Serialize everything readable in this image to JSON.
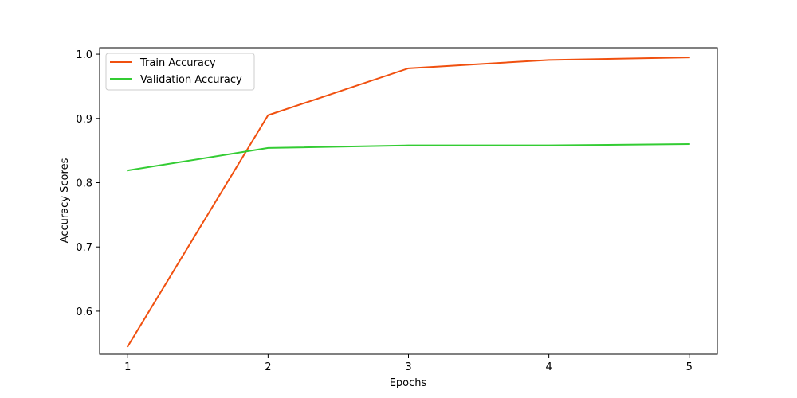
{
  "chart_data": {
    "type": "line",
    "title": "",
    "xlabel": "Epochs",
    "ylabel": "Accuracy Scores",
    "x": [
      1,
      2,
      3,
      4,
      5
    ],
    "xticks": [
      "1",
      "2",
      "3",
      "4",
      "5"
    ],
    "xlim": [
      0.8,
      5.2
    ],
    "yticks": [
      "0.6",
      "0.7",
      "0.8",
      "0.9",
      "1.0"
    ],
    "ylim": [
      0.533,
      1.01
    ],
    "grid": false,
    "legend_position": "top-left",
    "series": [
      {
        "name": "Train Accuracy",
        "color": "#f0500f",
        "values": [
          0.545,
          0.905,
          0.978,
          0.991,
          0.995
        ]
      },
      {
        "name": "Validation Accuracy",
        "color": "#33cc33",
        "values": [
          0.819,
          0.854,
          0.858,
          0.858,
          0.86
        ]
      }
    ]
  }
}
